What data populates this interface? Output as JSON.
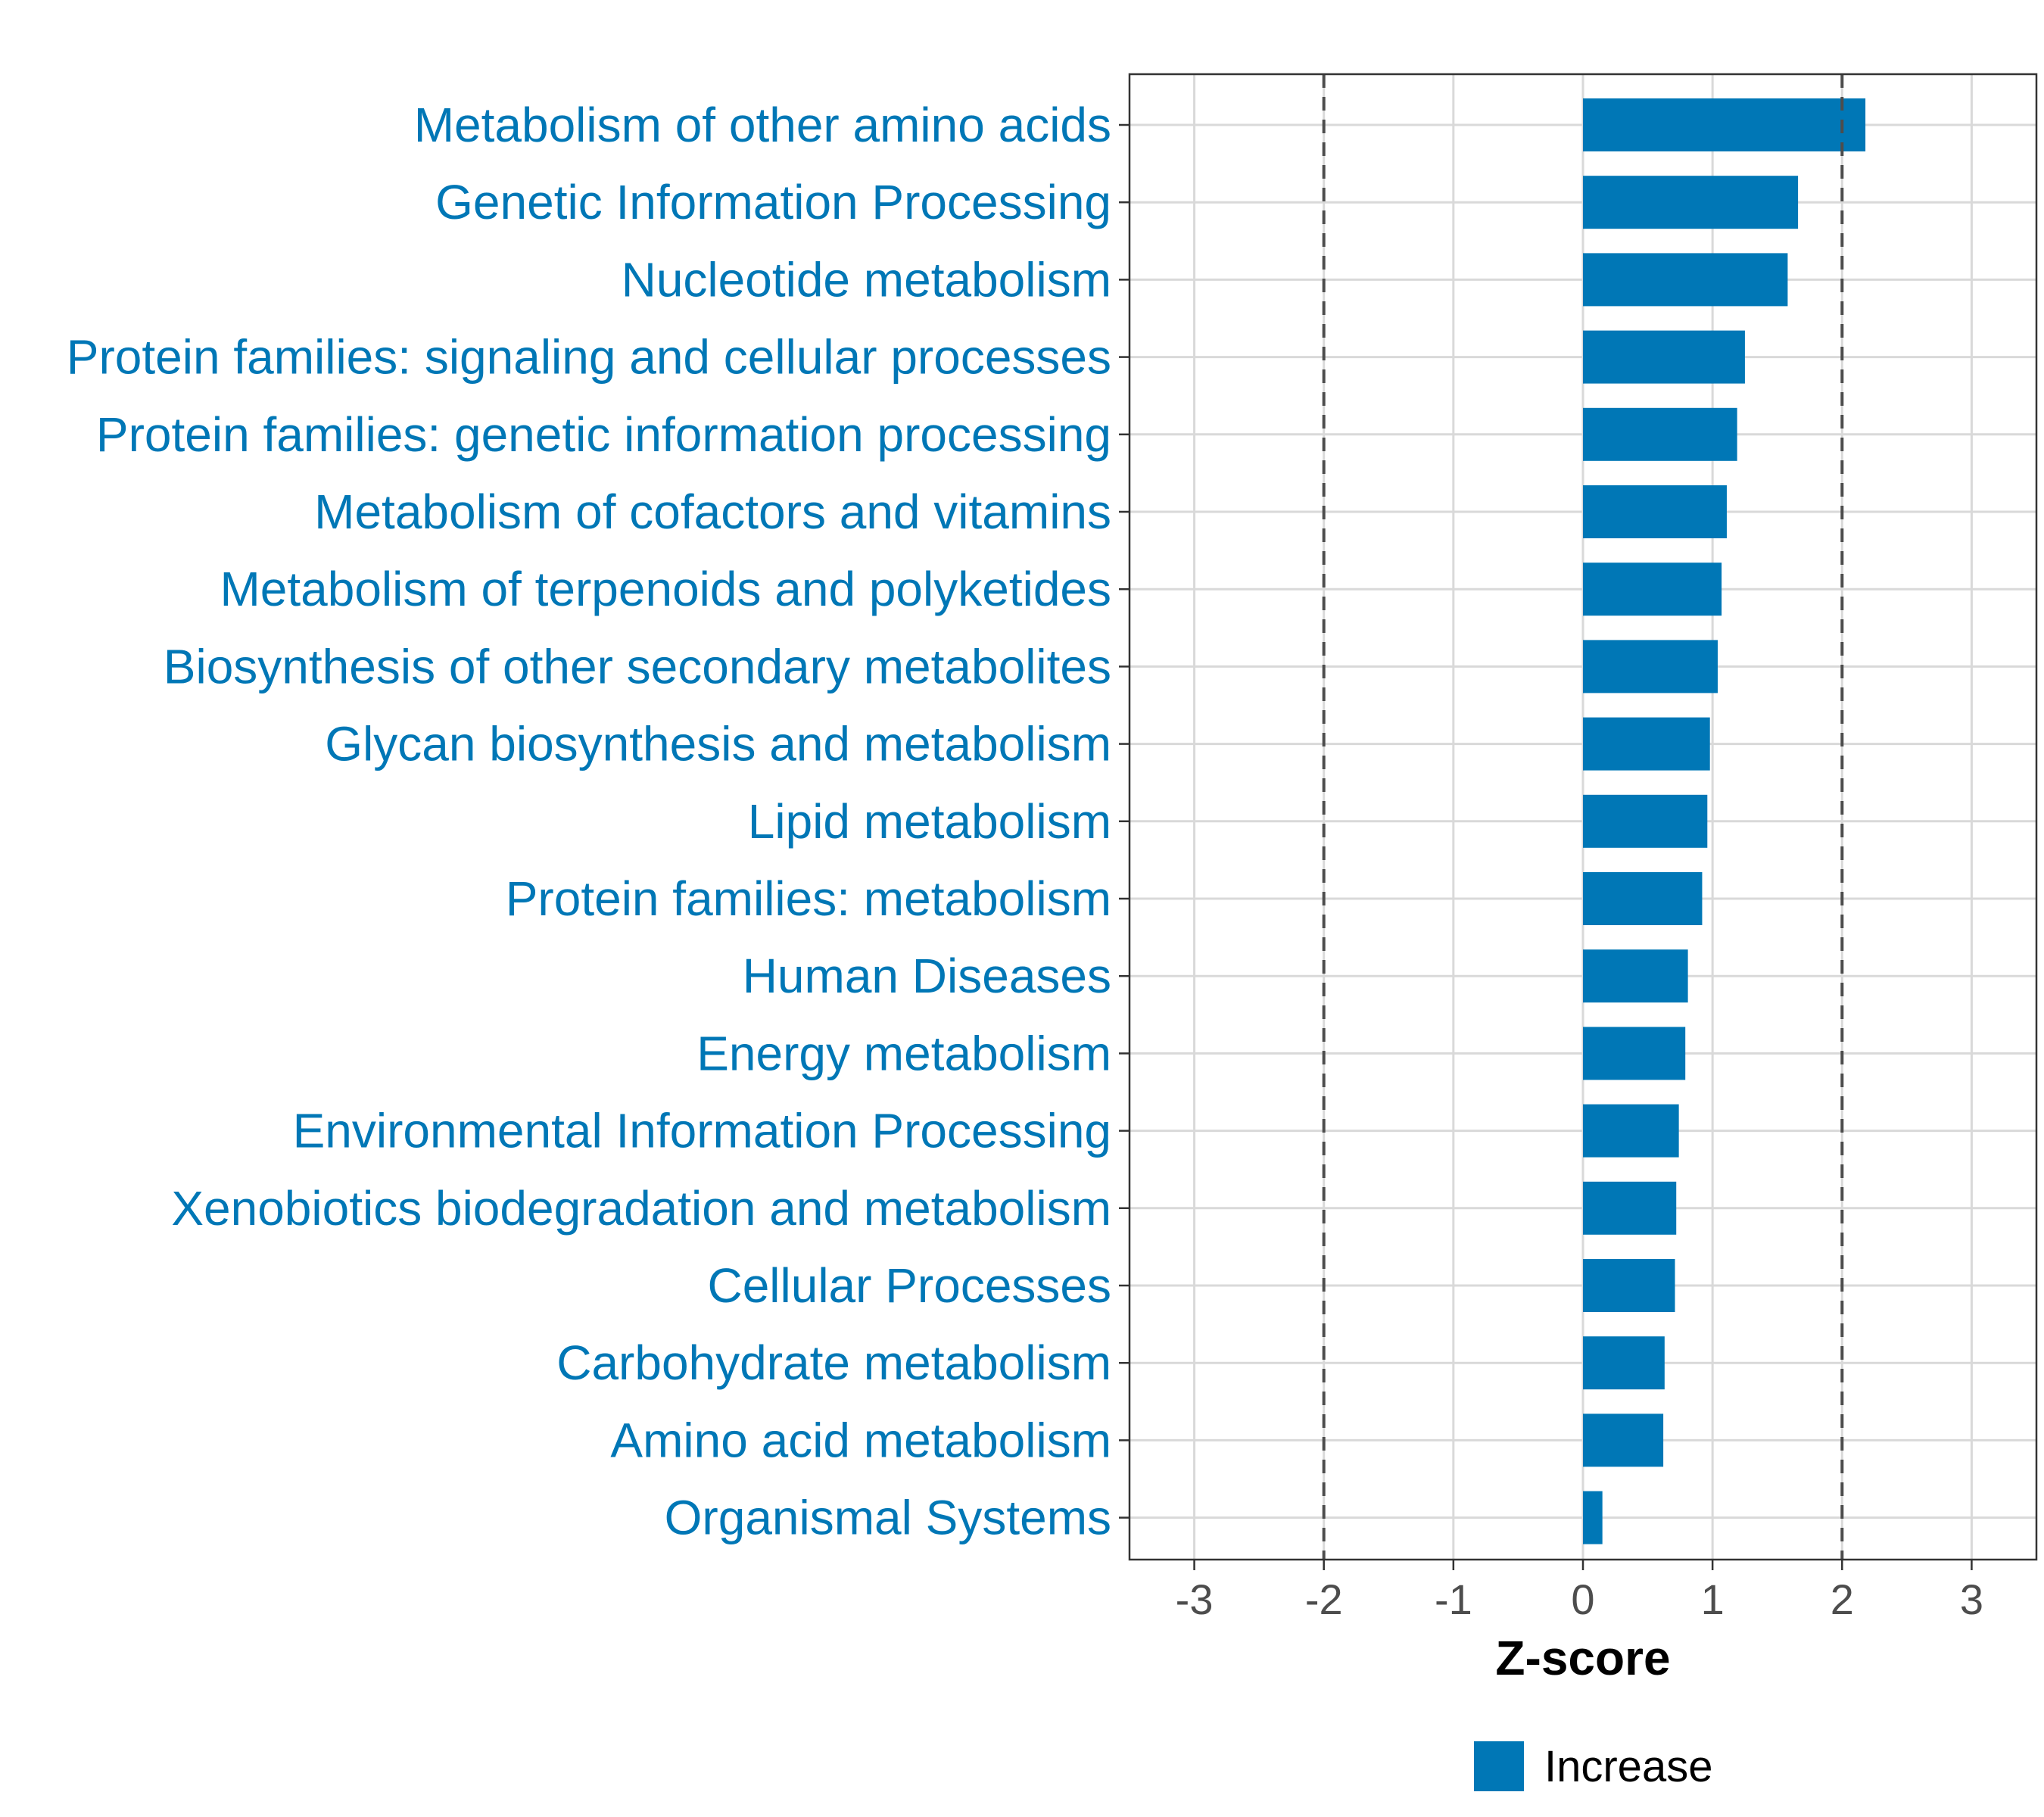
{
  "chart_data": {
    "type": "bar",
    "orientation": "horizontal",
    "categories": [
      "Metabolism of other amino acids",
      "Genetic Information Processing",
      "Nucleotide metabolism",
      "Protein families: signaling and cellular processes",
      "Protein families: genetic information processing",
      "Metabolism of cofactors and vitamins",
      "Metabolism of terpenoids and polyketides",
      "Biosynthesis of other secondary metabolites",
      "Glycan biosynthesis and metabolism",
      "Lipid metabolism",
      "Protein families: metabolism",
      "Human Diseases",
      "Energy metabolism",
      "Environmental Information Processing",
      "Xenobiotics biodegradation and metabolism",
      "Cellular Processes",
      "Carbohydrate metabolism",
      "Amino acid metabolism",
      "Organismal Systems"
    ],
    "values": [
      2.18,
      1.66,
      1.58,
      1.25,
      1.19,
      1.11,
      1.07,
      1.04,
      0.98,
      0.96,
      0.92,
      0.81,
      0.79,
      0.74,
      0.72,
      0.71,
      0.63,
      0.62,
      0.15
    ],
    "xlim": [
      -3.5,
      3.5
    ],
    "xticks": [
      -3,
      -2,
      -1,
      0,
      1,
      2,
      3
    ],
    "xtick_labels": [
      "-3",
      "-2",
      "-1",
      "0",
      "1",
      "2",
      "3"
    ],
    "reference_lines": [
      -2,
      2
    ],
    "xlabel": "Z-score",
    "ylabel": "",
    "title": "",
    "grid": true,
    "legend": {
      "position": "bottom",
      "entries": [
        {
          "label": "Increase",
          "color": "#0077b6"
        }
      ]
    },
    "colors": {
      "bar": "#0077b6",
      "category_text": "#0077b6",
      "grid": "#d9d9d9",
      "reference_line": "#4d4d4d"
    }
  }
}
